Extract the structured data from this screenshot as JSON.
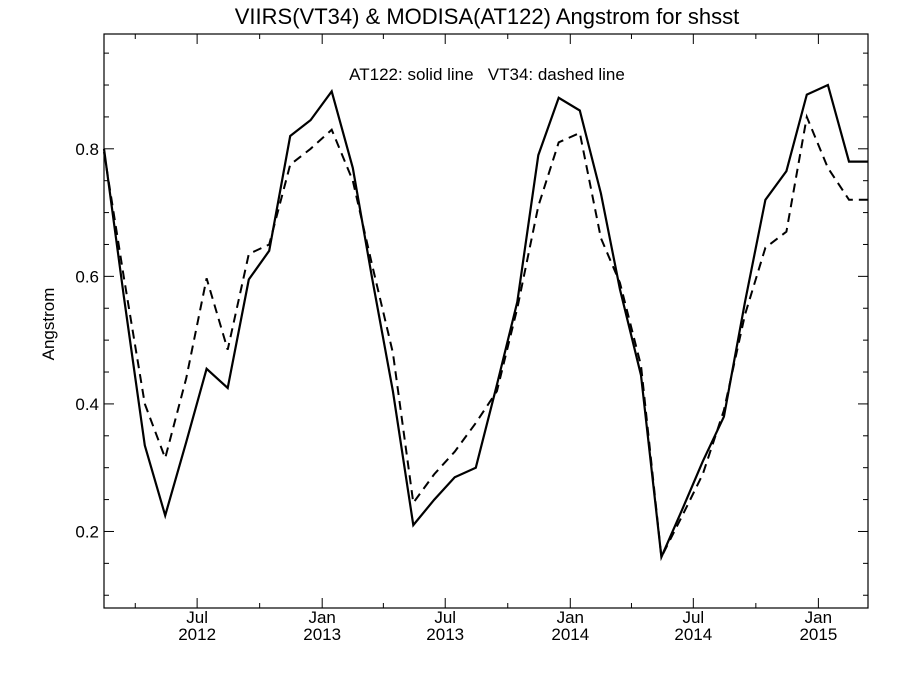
{
  "chart_data": {
    "type": "line",
    "title": "VIIRS(VT34) & MODISA(AT122)  Angstrom for shsst",
    "ylabel": "Angstrom",
    "xlabel": "",
    "annotation": "AT122: solid line   VT34: dashed line",
    "xlim": [
      "2012-02-15",
      "2015-03-15"
    ],
    "ylim": [
      0.08,
      0.98
    ],
    "y_ticks": [
      0.2,
      0.4,
      0.6,
      0.8
    ],
    "y_tick_labels": [
      "0.2",
      "0.4",
      "0.6",
      "0.8"
    ],
    "x_major_ticks": [
      {
        "date": "2012-07-01",
        "month": "Jul",
        "year": "2012"
      },
      {
        "date": "2013-01-01",
        "month": "Jan",
        "year": "2013"
      },
      {
        "date": "2013-07-01",
        "month": "Jul",
        "year": "2013"
      },
      {
        "date": "2014-01-01",
        "month": "Jan",
        "year": "2014"
      },
      {
        "date": "2014-07-01",
        "month": "Jul",
        "year": "2014"
      },
      {
        "date": "2015-01-01",
        "month": "Jan",
        "year": "2015"
      }
    ],
    "x_minor_ticks": [
      "2012-04-01",
      "2012-10-01",
      "2013-04-01",
      "2013-10-01",
      "2014-04-01",
      "2014-10-01"
    ],
    "x": [
      "2012-02-15",
      "2012-03-15",
      "2012-04-15",
      "2012-05-15",
      "2012-06-15",
      "2012-07-15",
      "2012-08-15",
      "2012-09-15",
      "2012-10-15",
      "2012-11-15",
      "2012-12-15",
      "2013-01-15",
      "2013-02-15",
      "2013-03-15",
      "2013-04-15",
      "2013-05-15",
      "2013-06-15",
      "2013-07-15",
      "2013-08-15",
      "2013-09-15",
      "2013-10-15",
      "2013-11-15",
      "2013-12-15",
      "2014-01-15",
      "2014-02-15",
      "2014-03-15",
      "2014-04-15",
      "2014-05-15",
      "2014-06-15",
      "2014-07-15",
      "2014-08-15",
      "2014-09-15",
      "2014-10-15",
      "2014-11-15",
      "2014-12-15",
      "2015-01-15",
      "2015-02-15",
      "2015-03-15"
    ],
    "series": [
      {
        "name": "AT122",
        "line_style": "solid",
        "values": [
          0.8,
          0.57,
          0.335,
          0.225,
          0.34,
          0.455,
          0.425,
          0.595,
          0.64,
          0.82,
          0.845,
          0.89,
          0.77,
          0.6,
          0.42,
          0.21,
          0.25,
          0.285,
          0.3,
          0.43,
          0.56,
          0.79,
          0.88,
          0.86,
          0.73,
          0.58,
          0.445,
          0.16,
          0.235,
          0.31,
          0.38,
          0.56,
          0.72,
          0.765,
          0.885,
          0.9,
          0.78,
          0.78
        ]
      },
      {
        "name": "VT34",
        "line_style": "dashed",
        "values": [
          0.795,
          0.6,
          0.4,
          0.315,
          0.44,
          0.597,
          0.485,
          0.635,
          0.65,
          0.775,
          0.8,
          0.83,
          0.75,
          0.62,
          0.48,
          0.245,
          0.29,
          0.325,
          0.37,
          0.42,
          0.55,
          0.71,
          0.81,
          0.825,
          0.66,
          0.59,
          0.46,
          0.16,
          0.225,
          0.29,
          0.39,
          0.54,
          0.645,
          0.67,
          0.85,
          0.77,
          0.72,
          0.72
        ]
      }
    ],
    "grid": false,
    "legend": "none",
    "colors": {
      "line": "#000000",
      "background": "#ffffff"
    }
  }
}
